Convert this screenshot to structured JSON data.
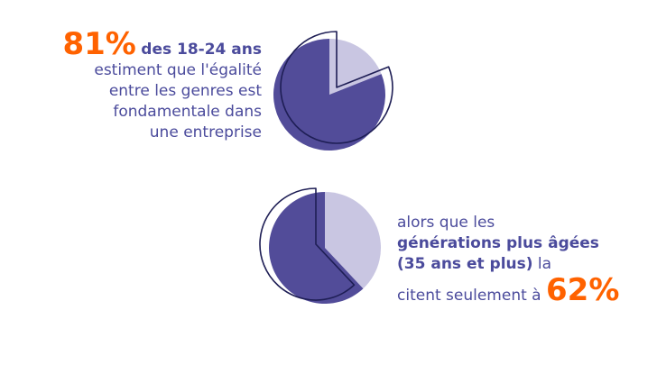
{
  "colors": {
    "primary": "#524c99",
    "light": "#c9c6e2",
    "accent": "#ff6200",
    "outline": "#1e1e55"
  },
  "top": {
    "percent": "81%",
    "line1": "des 18-24 ans",
    "line2": "estiment que l'égalité",
    "line3": "entre les genres est",
    "line4": "fondamentale dans",
    "line5": "une entreprise"
  },
  "bottom": {
    "line1": "alors que les",
    "line2": "générations plus âgées",
    "line3": "(35 ans et plus)",
    "line3_tail": " la",
    "line4": "citent seulement à",
    "percent": "62%"
  },
  "chart_data": [
    {
      "type": "pie",
      "group": "18-24 ans",
      "values": [
        81,
        19
      ]
    },
    {
      "type": "pie",
      "group": "35 ans et plus",
      "values": [
        62,
        38
      ]
    }
  ]
}
